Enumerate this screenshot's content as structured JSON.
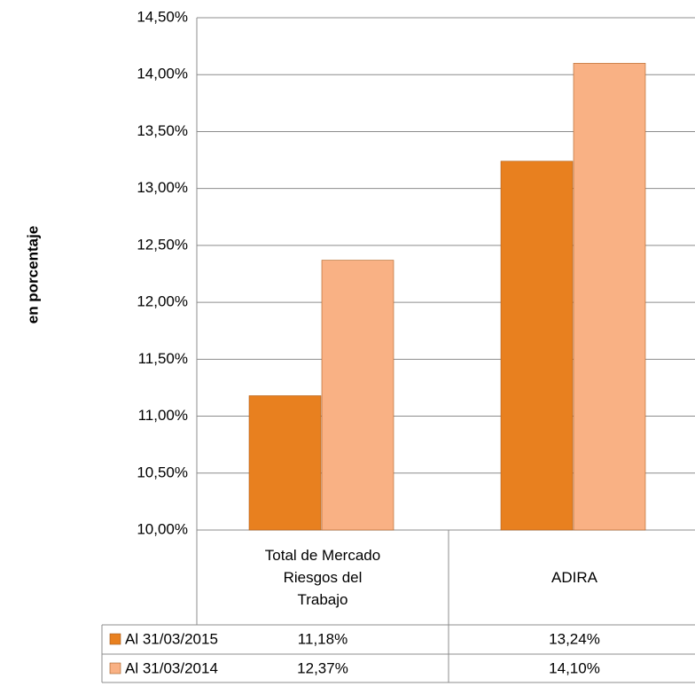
{
  "chart_data": {
    "type": "bar",
    "y_axis_label": "en porcentaje",
    "categories": [
      "Total de Mercado Riesgos del Trabajo",
      "ADIRA"
    ],
    "series": [
      {
        "name": "Al 31/03/2015",
        "color": "#e8801f",
        "values": [
          11.18,
          13.24
        ],
        "value_labels": [
          "11,18%",
          "13,24%"
        ]
      },
      {
        "name": "Al 31/03/2014",
        "color": "#f9b184",
        "values": [
          12.37,
          14.1
        ],
        "value_labels": [
          "12,37%",
          "14,10%"
        ]
      }
    ],
    "ylim": [
      10,
      14.5
    ],
    "yticks": [
      {
        "value": 10,
        "label": "10,00%"
      },
      {
        "value": 10.5,
        "label": "10,50%"
      },
      {
        "value": 11,
        "label": "11,00%"
      },
      {
        "value": 11.5,
        "label": "11,50%"
      },
      {
        "value": 12,
        "label": "12,00%"
      },
      {
        "value": 12.5,
        "label": "12,50%"
      },
      {
        "value": 13,
        "label": "13,00%"
      },
      {
        "value": 13.5,
        "label": "13,50%"
      },
      {
        "value": 14,
        "label": "14,00%"
      },
      {
        "value": 14.5,
        "label": "14,50%"
      }
    ],
    "grid": true
  }
}
